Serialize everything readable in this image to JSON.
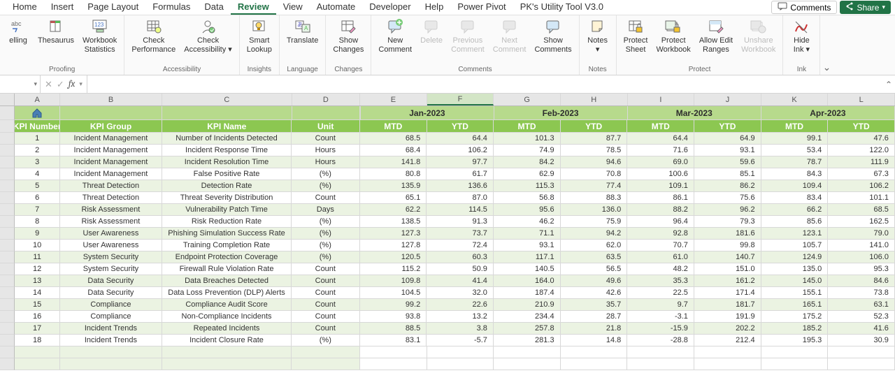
{
  "menu": {
    "tabs": [
      "Home",
      "Insert",
      "Page Layout",
      "Formulas",
      "Data",
      "Review",
      "View",
      "Automate",
      "Developer",
      "Help",
      "Power Pivot",
      "PK's Utility Tool V3.0"
    ],
    "active_index": 5,
    "comments_btn": "Comments",
    "share_btn": "Share"
  },
  "ribbon": {
    "groups": [
      {
        "label": "Proofing",
        "buttons": [
          {
            "label": "elling",
            "icon": "abc"
          },
          {
            "label": "Thesaurus",
            "icon": "book"
          },
          {
            "label": "Workbook\nStatistics",
            "icon": "123"
          }
        ]
      },
      {
        "label": "Accessibility",
        "buttons": [
          {
            "label": "Check\nPerformance",
            "icon": "grid"
          },
          {
            "label": "Check\nAccessibility ▾",
            "icon": "person"
          }
        ]
      },
      {
        "label": "Insights",
        "buttons": [
          {
            "label": "Smart\nLookup",
            "icon": "bulb"
          }
        ]
      },
      {
        "label": "Language",
        "buttons": [
          {
            "label": "Translate",
            "icon": "translate"
          }
        ]
      },
      {
        "label": "Changes",
        "buttons": [
          {
            "label": "Show\nChanges",
            "icon": "table-edit"
          }
        ]
      },
      {
        "label": "Comments",
        "buttons": [
          {
            "label": "New\nComment",
            "icon": "comment-plus"
          },
          {
            "label": "Delete",
            "icon": "comment",
            "disabled": true
          },
          {
            "label": "Previous\nComment",
            "icon": "comment",
            "disabled": true
          },
          {
            "label": "Next\nComment",
            "icon": "comment",
            "disabled": true
          },
          {
            "label": "Show\nComments",
            "icon": "comment"
          }
        ]
      },
      {
        "label": "Notes",
        "buttons": [
          {
            "label": "Notes\n▾",
            "icon": "note"
          }
        ]
      },
      {
        "label": "Protect",
        "buttons": [
          {
            "label": "Protect\nSheet",
            "icon": "lock-sheet"
          },
          {
            "label": "Protect\nWorkbook",
            "icon": "lock-book"
          },
          {
            "label": "Allow Edit\nRanges",
            "icon": "edit-range"
          },
          {
            "label": "Unshare\nWorkbook",
            "icon": "unshare",
            "disabled": true
          }
        ]
      },
      {
        "label": "Ink",
        "buttons": [
          {
            "label": "Hide\nInk ▾",
            "icon": "ink"
          }
        ]
      }
    ]
  },
  "columns": [
    "A",
    "B",
    "C",
    "D",
    "E",
    "F",
    "G",
    "H",
    "I",
    "J",
    "K",
    "L"
  ],
  "selected_col_index": 5,
  "headers": {
    "months": [
      "Jan-2023",
      "Feb-2023",
      "Mar-2023",
      "Apr-2023"
    ],
    "kpi_number": "KPI Number",
    "kpi_group": "KPI Group",
    "kpi_name": "KPI Name",
    "unit": "Unit",
    "mtd": "MTD",
    "ytd": "YTD"
  },
  "rows": [
    {
      "n": "1",
      "group": "Incident Management",
      "name": "Number of Incidents Detected",
      "unit": "Count",
      "v": [
        "68.5",
        "64.4",
        "101.3",
        "87.7",
        "64.4",
        "64.9",
        "99.1",
        "47.6"
      ]
    },
    {
      "n": "2",
      "group": "Incident Management",
      "name": "Incident Response Time",
      "unit": "Hours",
      "v": [
        "68.4",
        "106.2",
        "74.9",
        "78.5",
        "71.6",
        "93.1",
        "53.4",
        "122.0"
      ]
    },
    {
      "n": "3",
      "group": "Incident Management",
      "name": "Incident Resolution Time",
      "unit": "Hours",
      "v": [
        "141.8",
        "97.7",
        "84.2",
        "94.6",
        "69.0",
        "59.6",
        "78.7",
        "111.9"
      ]
    },
    {
      "n": "4",
      "group": "Incident Management",
      "name": "False Positive Rate",
      "unit": "(%)",
      "v": [
        "80.8",
        "61.7",
        "62.9",
        "70.8",
        "100.6",
        "85.1",
        "84.3",
        "67.3"
      ]
    },
    {
      "n": "5",
      "group": "Threat Detection",
      "name": "Detection Rate",
      "unit": "(%)",
      "v": [
        "135.9",
        "136.6",
        "115.3",
        "77.4",
        "109.1",
        "86.2",
        "109.4",
        "106.2"
      ]
    },
    {
      "n": "6",
      "group": "Threat Detection",
      "name": "Threat Severity Distribution",
      "unit": "Count",
      "v": [
        "65.1",
        "87.0",
        "56.8",
        "88.3",
        "86.1",
        "75.6",
        "83.4",
        "101.1"
      ]
    },
    {
      "n": "7",
      "group": "Risk Assessment",
      "name": "Vulnerability Patch Time",
      "unit": "Days",
      "v": [
        "62.2",
        "114.5",
        "95.6",
        "136.0",
        "88.2",
        "96.2",
        "66.2",
        "68.5"
      ]
    },
    {
      "n": "8",
      "group": "Risk Assessment",
      "name": "Risk Reduction Rate",
      "unit": "(%)",
      "v": [
        "138.5",
        "91.3",
        "46.2",
        "75.9",
        "96.4",
        "79.3",
        "85.6",
        "162.5"
      ]
    },
    {
      "n": "9",
      "group": "User Awareness",
      "name": "Phishing Simulation Success Rate",
      "unit": "(%)",
      "v": [
        "127.3",
        "73.7",
        "71.1",
        "94.2",
        "92.8",
        "181.6",
        "123.1",
        "79.0"
      ]
    },
    {
      "n": "10",
      "group": "User Awareness",
      "name": "Training Completion Rate",
      "unit": "(%)",
      "v": [
        "127.8",
        "72.4",
        "93.1",
        "62.0",
        "70.7",
        "99.8",
        "105.7",
        "141.0"
      ]
    },
    {
      "n": "11",
      "group": "System Security",
      "name": "Endpoint Protection Coverage",
      "unit": "(%)",
      "v": [
        "120.5",
        "60.3",
        "117.1",
        "63.5",
        "61.0",
        "140.7",
        "124.9",
        "106.0"
      ]
    },
    {
      "n": "12",
      "group": "System Security",
      "name": "Firewall Rule Violation Rate",
      "unit": "Count",
      "v": [
        "115.2",
        "50.9",
        "140.5",
        "56.5",
        "48.2",
        "151.0",
        "135.0",
        "95.3"
      ]
    },
    {
      "n": "13",
      "group": "Data Security",
      "name": "Data Breaches Detected",
      "unit": "Count",
      "v": [
        "109.8",
        "41.4",
        "164.0",
        "49.6",
        "35.3",
        "161.2",
        "145.0",
        "84.6"
      ]
    },
    {
      "n": "14",
      "group": "Data Security",
      "name": "Data Loss Prevention (DLP) Alerts",
      "unit": "Count",
      "v": [
        "104.5",
        "32.0",
        "187.4",
        "42.6",
        "22.5",
        "171.4",
        "155.1",
        "73.8"
      ]
    },
    {
      "n": "15",
      "group": "Compliance",
      "name": "Compliance Audit Score",
      "unit": "Count",
      "v": [
        "99.2",
        "22.6",
        "210.9",
        "35.7",
        "9.7",
        "181.7",
        "165.1",
        "63.1"
      ]
    },
    {
      "n": "16",
      "group": "Compliance",
      "name": "Non-Compliance Incidents",
      "unit": "Count",
      "v": [
        "93.8",
        "13.2",
        "234.4",
        "28.7",
        "-3.1",
        "191.9",
        "175.2",
        "52.3"
      ]
    },
    {
      "n": "17",
      "group": "Incident Trends",
      "name": "Repeated Incidents",
      "unit": "Count",
      "v": [
        "88.5",
        "3.8",
        "257.8",
        "21.8",
        "-15.9",
        "202.2",
        "185.2",
        "41.6"
      ]
    },
    {
      "n": "18",
      "group": "Incident Trends",
      "name": "Incident Closure Rate",
      "unit": "(%)",
      "v": [
        "83.1",
        "-5.7",
        "281.3",
        "14.8",
        "-28.8",
        "212.4",
        "195.3",
        "30.9"
      ]
    }
  ],
  "colors": {
    "green": "#8cc751",
    "light_green": "#b7da8c",
    "stripe": "#ebf3e2",
    "excel_green": "#217346"
  }
}
